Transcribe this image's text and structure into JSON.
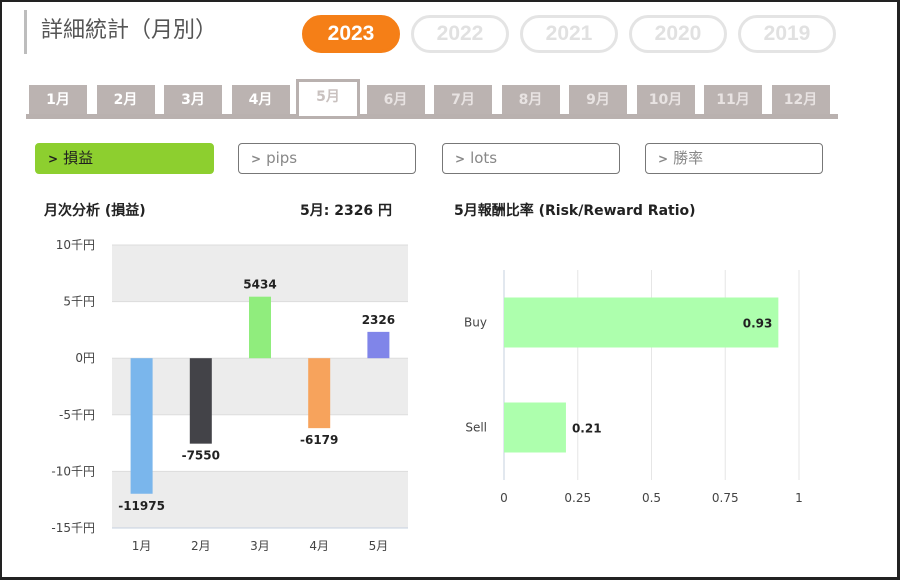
{
  "header": {
    "title": "詳細統計（月別）",
    "years": [
      "2023",
      "2022",
      "2021",
      "2020",
      "2019"
    ],
    "active_year": 0
  },
  "months": {
    "labels": [
      "1月",
      "2月",
      "3月",
      "4月",
      "5月",
      "6月",
      "7月",
      "8月",
      "9月",
      "10月",
      "11月",
      "12月"
    ],
    "active": 4
  },
  "metrics": {
    "buttons": [
      "損益",
      "pips",
      "lots",
      "勝率"
    ],
    "active": 0
  },
  "colors": {
    "accent_orange": "#f57f17",
    "accent_green": "#8dcf2f",
    "tab_grey": "#bbb3b1"
  },
  "left_panel": {
    "title": "月次分析 (損益)",
    "summary": "5月:  2326 円"
  },
  "right_panel": {
    "title": "5月報酬比率 (Risk/Reward Ratio)"
  },
  "chart_data": [
    {
      "type": "bar",
      "title": "月次分析 (損益)",
      "categories": [
        "1月",
        "2月",
        "3月",
        "4月",
        "5月"
      ],
      "values": [
        -11975,
        -7550,
        5434,
        -6179,
        2326
      ],
      "value_labels": [
        "-11975",
        "-7550",
        "5434",
        "-6179",
        "2326"
      ],
      "bar_colors": [
        "#7ab6ec",
        "#434348",
        "#90ed7d",
        "#f7a35c",
        "#8085e9"
      ],
      "ylim": [
        -15000,
        10000
      ],
      "yticks": [
        10000,
        5000,
        0,
        -5000,
        -10000,
        -15000
      ],
      "ytick_labels": [
        "10千円",
        "5千円",
        "0円",
        "-5千円",
        "-10千円",
        "-15千円"
      ],
      "grid": "alternating bands",
      "xlabel": "",
      "ylabel": ""
    },
    {
      "type": "bar",
      "orientation": "horizontal",
      "title": "5月報酬比率 (Risk/Reward Ratio)",
      "categories": [
        "Buy",
        "Sell"
      ],
      "values": [
        0.93,
        0.21
      ],
      "value_labels": [
        "0.93",
        "0.21"
      ],
      "bar_color": "#adffad",
      "xlim": [
        0,
        1
      ],
      "xticks": [
        0,
        0.25,
        0.5,
        0.75,
        1
      ],
      "xtick_labels": [
        "0",
        "0.25",
        "0.5",
        "0.75",
        "1"
      ],
      "grid": "vertical lines",
      "xlabel": "",
      "ylabel": ""
    }
  ]
}
